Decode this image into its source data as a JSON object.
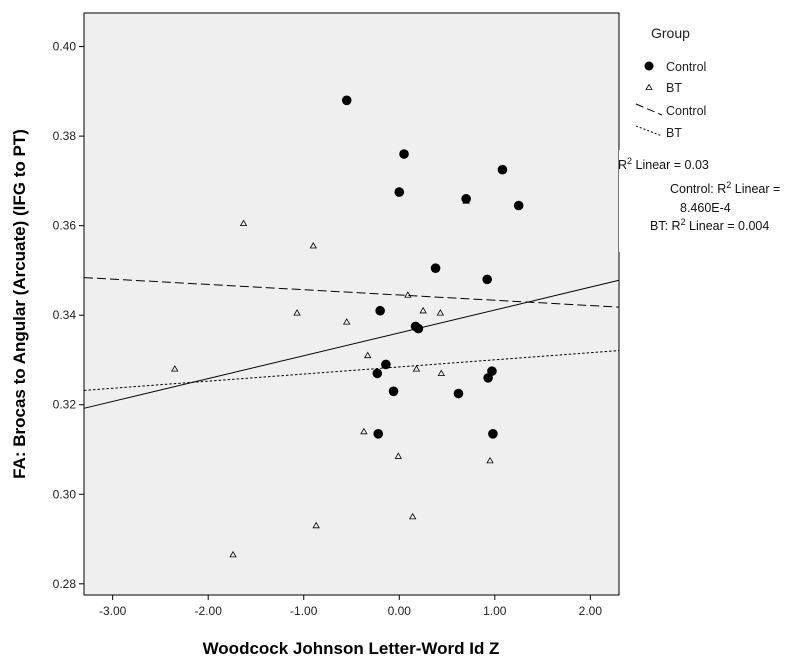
{
  "chart_data": {
    "type": "scatter",
    "xlabel": "Woodcock Johnson Letter-Word Id Z",
    "ylabel": "FA: Brocas to Angular (Arcuate) (IFG to PT)",
    "xlim": [
      -3.3,
      2.3
    ],
    "ylim": [
      0.2775,
      0.4075
    ],
    "x_ticks": [
      -3.0,
      -2.0,
      -1.0,
      0.0,
      1.0,
      2.0
    ],
    "x_tick_labels": [
      "-3.00",
      "-2.00",
      "-1.00",
      "0.00",
      "1.00",
      "2.00"
    ],
    "y_ticks": [
      0.28,
      0.3,
      0.32,
      0.34,
      0.36,
      0.38,
      0.4
    ],
    "y_tick_labels": [
      "0.28",
      "0.30",
      "0.32",
      "0.34",
      "0.36",
      "0.38",
      "0.40"
    ],
    "grid": false,
    "legend_placement": "right",
    "colors": {
      "plot_background": "#efefef",
      "marker": "#000000",
      "frame": "#000000"
    },
    "legend": {
      "title": "Group",
      "items": [
        {
          "label": "Control",
          "marker": "filled-circle"
        },
        {
          "label": "BT",
          "marker": "open-triangle"
        },
        {
          "label": "Control",
          "marker": "dashed-line"
        },
        {
          "label": "BT",
          "marker": "dotted-line"
        }
      ]
    },
    "annotations": {
      "r2_total": [
        "R",
        "2",
        " Linear = 0.03"
      ],
      "r2_control": [
        "Control: R",
        "2",
        " Linear ="
      ],
      "r2_control_value": "8.460E-4",
      "r2_bt": [
        "BT: R",
        "2",
        " Linear = 0.004"
      ]
    },
    "series": [
      {
        "name": "Control",
        "marker": "filled-circle",
        "points": [
          [
            -0.55,
            0.388
          ],
          [
            0.05,
            0.376
          ],
          [
            1.08,
            0.3725
          ],
          [
            0.0,
            0.3675
          ],
          [
            0.7,
            0.366
          ],
          [
            1.25,
            0.3645
          ],
          [
            0.38,
            0.3505
          ],
          [
            0.92,
            0.348
          ],
          [
            -0.2,
            0.341
          ],
          [
            0.17,
            0.3375
          ],
          [
            0.2,
            0.337
          ],
          [
            -0.14,
            0.329
          ],
          [
            -0.23,
            0.327
          ],
          [
            0.97,
            0.3275
          ],
          [
            -0.06,
            0.323
          ],
          [
            0.62,
            0.3225
          ],
          [
            0.93,
            0.326
          ],
          [
            -0.22,
            0.3135
          ],
          [
            0.98,
            0.3135
          ]
        ]
      },
      {
        "name": "BT",
        "marker": "open-triangle",
        "points": [
          [
            -1.63,
            0.3605
          ],
          [
            -0.9,
            0.3555
          ],
          [
            0.7,
            0.3655
          ],
          [
            0.09,
            0.3445
          ],
          [
            -1.07,
            0.3405
          ],
          [
            0.25,
            0.341
          ],
          [
            0.43,
            0.3405
          ],
          [
            -0.55,
            0.3385
          ],
          [
            -0.33,
            0.331
          ],
          [
            -2.35,
            0.328
          ],
          [
            0.18,
            0.328
          ],
          [
            0.44,
            0.327
          ],
          [
            -0.37,
            0.314
          ],
          [
            -0.01,
            0.3085
          ],
          [
            0.95,
            0.3075
          ],
          [
            0.14,
            0.295
          ],
          [
            -0.87,
            0.293
          ],
          [
            -1.74,
            0.2865
          ]
        ]
      }
    ],
    "fit_lines": [
      {
        "name": "Total",
        "style": "solid",
        "x": [
          -3.3,
          2.3
        ],
        "y": [
          0.3192,
          0.3478
        ]
      },
      {
        "name": "Control",
        "style": "dashed",
        "x": [
          -3.3,
          2.3
        ],
        "y": [
          0.3484,
          0.3418
        ]
      },
      {
        "name": "BT",
        "style": "dotted",
        "x": [
          -3.3,
          2.3
        ],
        "y": [
          0.3232,
          0.3321
        ]
      }
    ]
  }
}
